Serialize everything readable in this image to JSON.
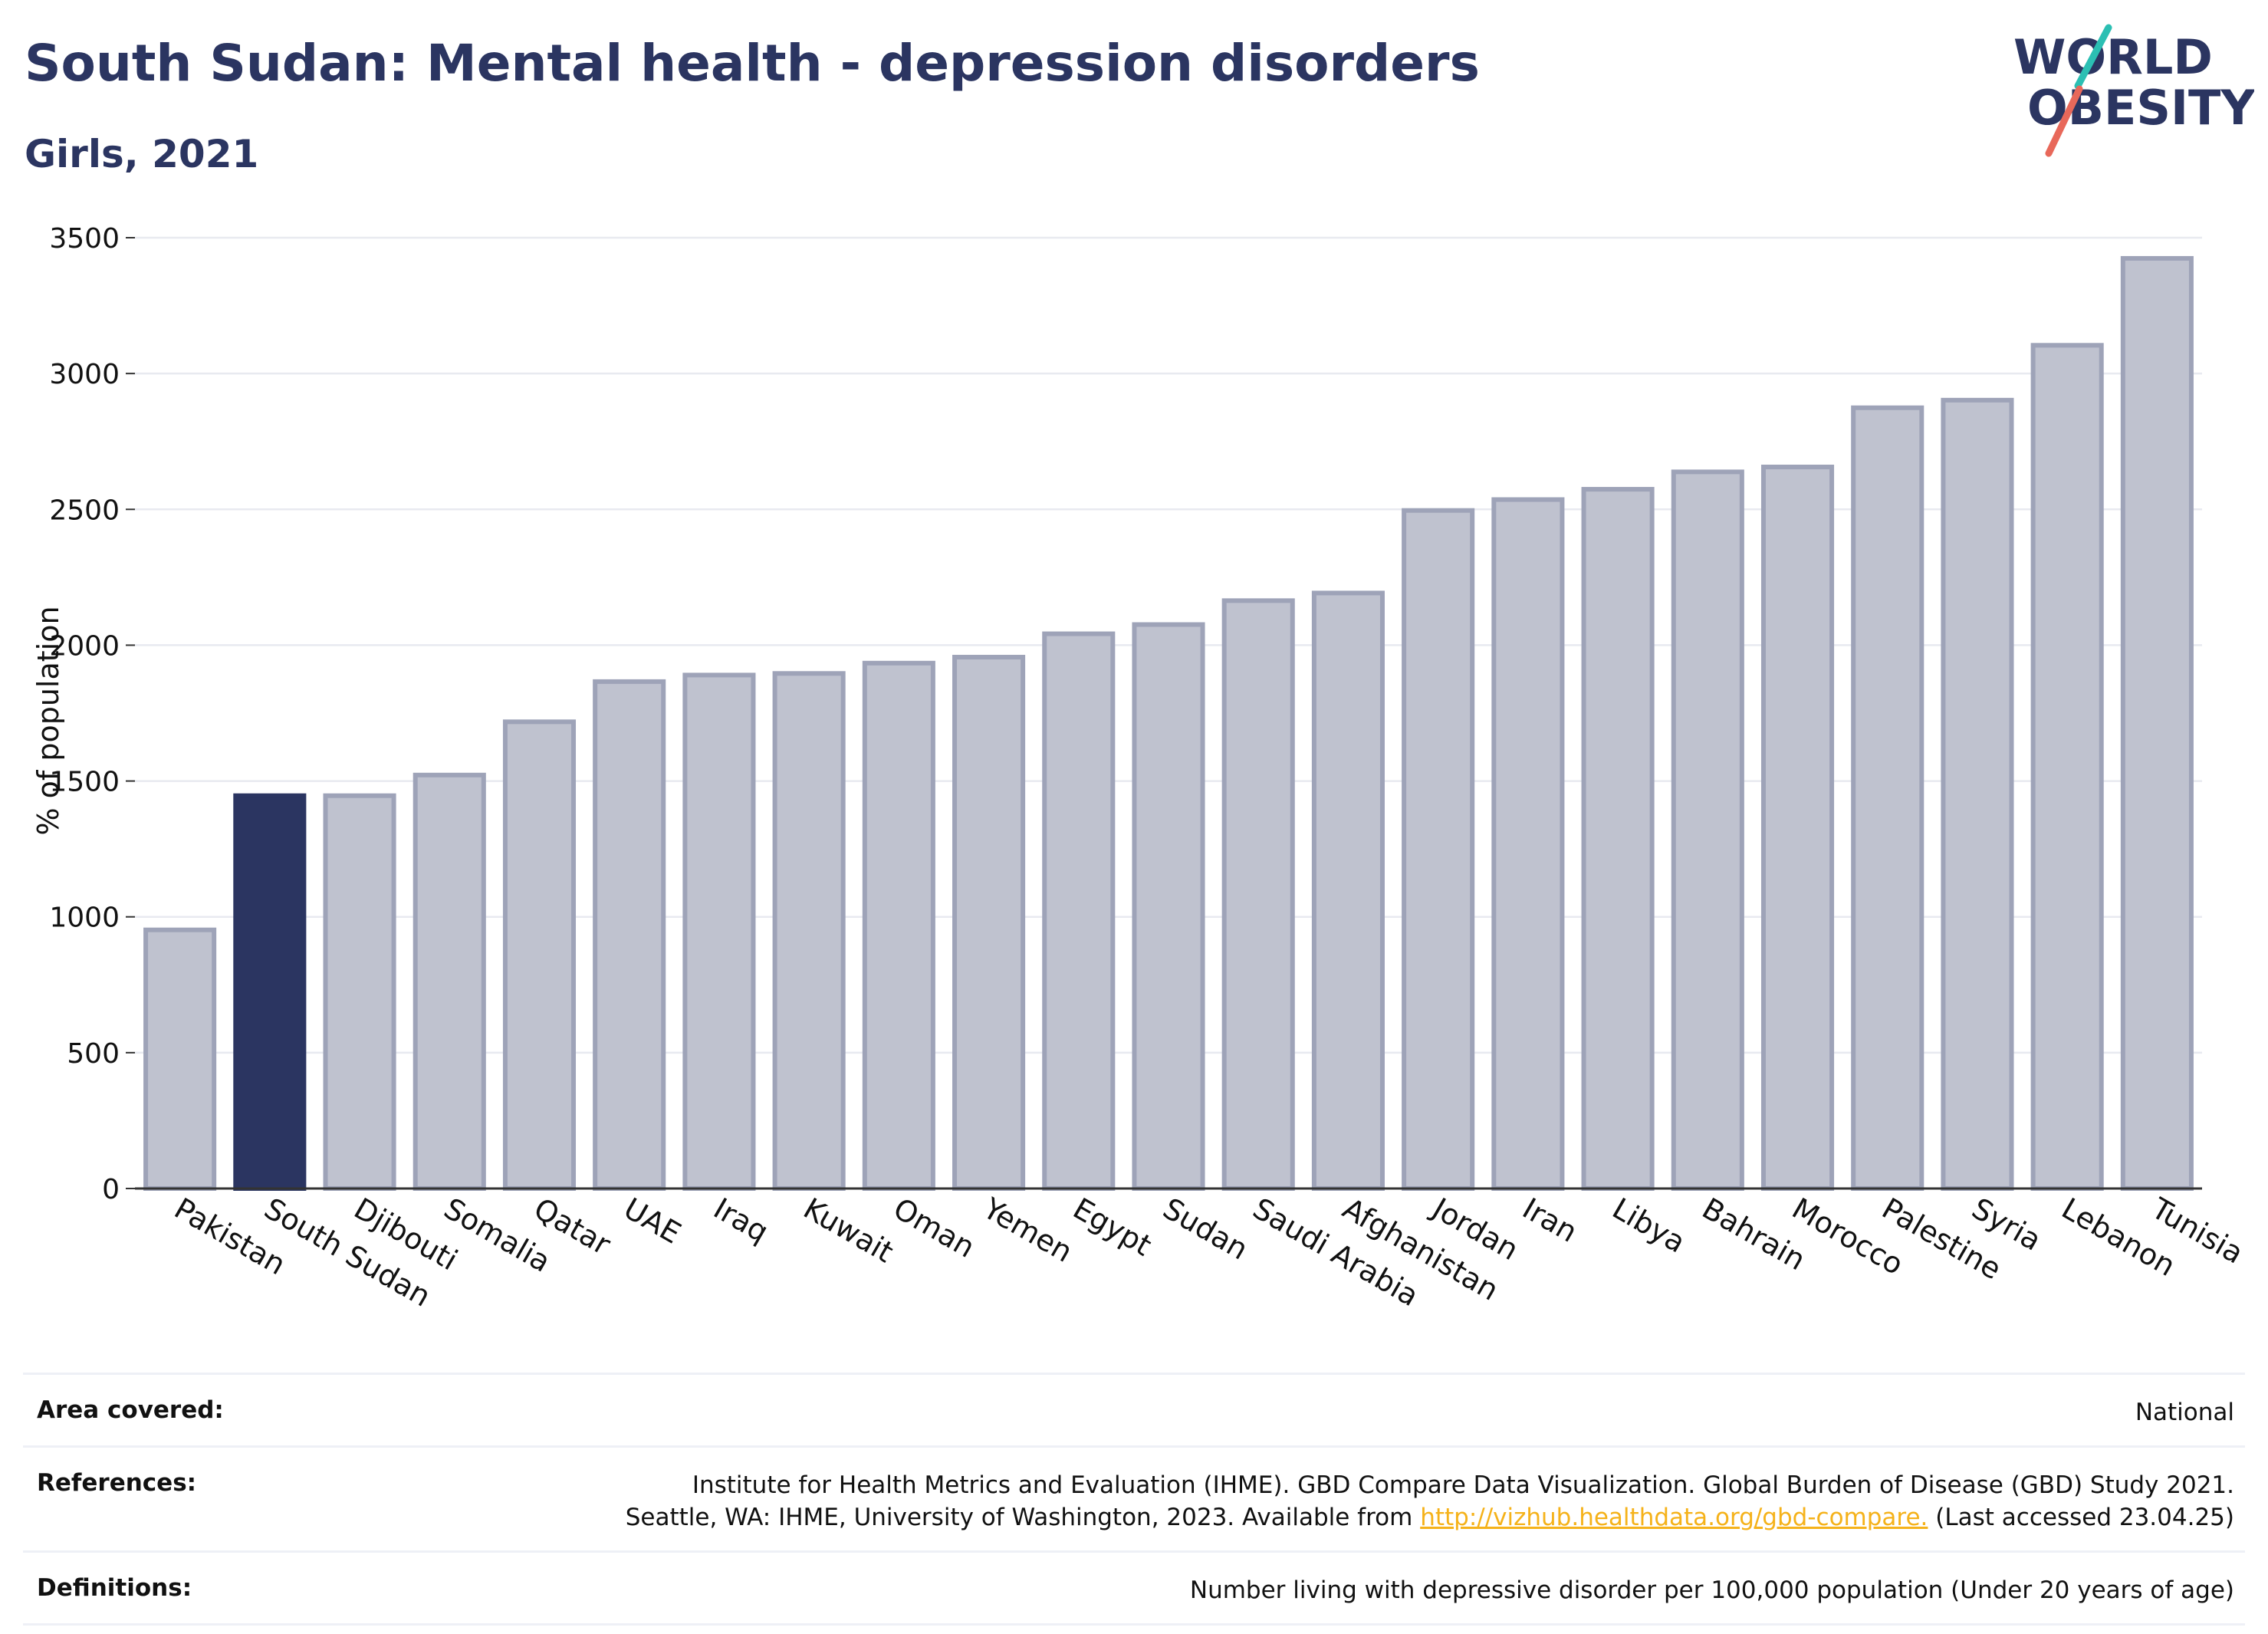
{
  "header": {
    "title": "South Sudan: Mental health - depression disorders",
    "subtitle": "Girls, 2021"
  },
  "logo": {
    "line1": "WORLD",
    "line2": "OBESITY",
    "text_color": "#2b3561",
    "slash_colors": [
      "#2bbfb3",
      "#e8685a"
    ]
  },
  "chart_data": {
    "type": "bar",
    "ylabel": "% of population",
    "ylim": [
      0,
      3500
    ],
    "yticks": [
      0,
      500,
      1000,
      1500,
      2000,
      2500,
      3000,
      3500
    ],
    "grid": true,
    "categories": [
      "Pakistan",
      "South Sudan",
      "Djibouti",
      "Somalia",
      "Qatar",
      "UAE",
      "Iraq",
      "Kuwait",
      "Oman",
      "Yemen",
      "Egypt",
      "Sudan",
      "Saudi Arabia",
      "Afghanistan",
      "Jordan",
      "Iran",
      "Libya",
      "Bahrain",
      "Morocco",
      "Palestine",
      "Syria",
      "Lebanon",
      "Tunisia"
    ],
    "values": [
      952,
      1446,
      1446,
      1522,
      1718,
      1866,
      1890,
      1896,
      1934,
      1956,
      2042,
      2076,
      2164,
      2192,
      2496,
      2536,
      2574,
      2638,
      2656,
      2874,
      2902,
      3104,
      3424
    ],
    "highlight": "South Sudan",
    "colors": {
      "highlight": "#2b3561",
      "bar_fill": "#bfc2cf",
      "bar_stroke": "#9ea3b8"
    }
  },
  "footer": {
    "area_covered": {
      "label": "Area covered:",
      "value": "National"
    },
    "references": {
      "label": "References:",
      "line1": "Institute for Health Metrics and Evaluation (IHME). GBD Compare Data Visualization. Global Burden of Disease (GBD) Study 2021.",
      "line2_prefix": "Seattle, WA: IHME, University of Washington, 2023. Available from",
      "link": "http://vizhub.healthdata.org/gbd-compare.",
      "line2_suffix": "(Last accessed 23.04.25)"
    },
    "definitions": {
      "label": "Definitions:",
      "value": "Number living with depressive disorder per 100,000 population (Under 20 years of age)"
    }
  }
}
